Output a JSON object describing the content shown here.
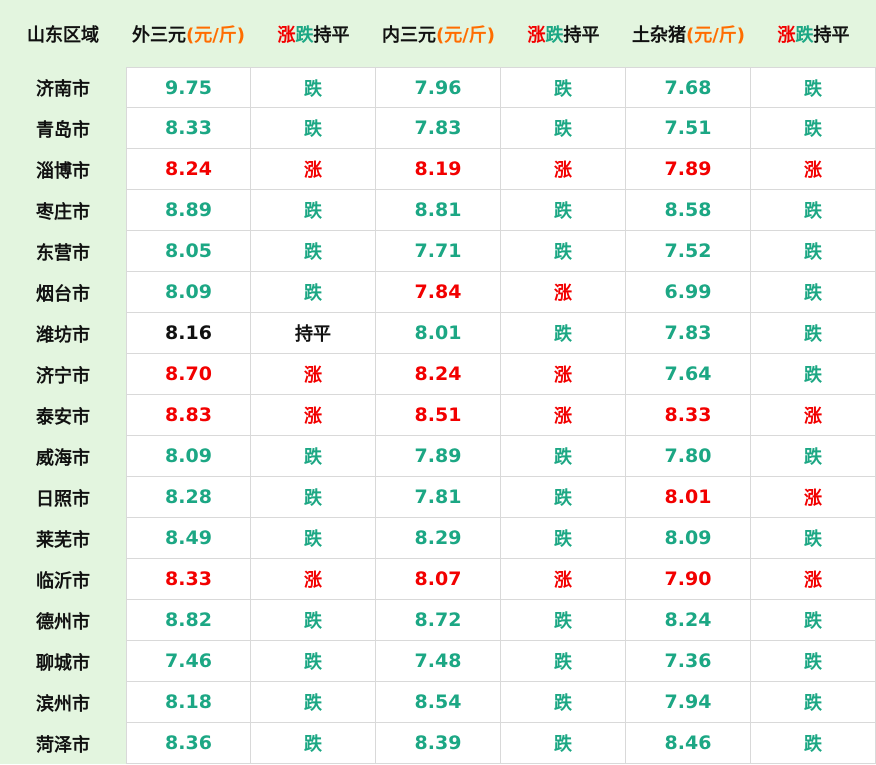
{
  "header": {
    "region": "山东区域",
    "price_cols": [
      {
        "name": "外三元",
        "unit": "(元/斤)"
      },
      {
        "name": "内三元",
        "unit": "(元/斤)"
      },
      {
        "name": "土杂猪",
        "unit": "(元/斤)"
      }
    ],
    "trend": {
      "rise": "涨",
      "fall": "跌",
      "flat": "持平"
    }
  },
  "colors": {
    "rise": "#f20000",
    "fall": "#1ca784",
    "flat": "#111111",
    "unit": "#ff6d00",
    "header_bg": "#e3f5df",
    "region_bg": "#e3f5df"
  },
  "rows": [
    {
      "city": "济南市",
      "cells": [
        {
          "price": "9.75",
          "trend": "跌"
        },
        {
          "price": "7.96",
          "trend": "跌"
        },
        {
          "price": "7.68",
          "trend": "跌"
        }
      ]
    },
    {
      "city": "青岛市",
      "cells": [
        {
          "price": "8.33",
          "trend": "跌"
        },
        {
          "price": "7.83",
          "trend": "跌"
        },
        {
          "price": "7.51",
          "trend": "跌"
        }
      ]
    },
    {
      "city": "淄博市",
      "cells": [
        {
          "price": "8.24",
          "trend": "涨"
        },
        {
          "price": "8.19",
          "trend": "涨"
        },
        {
          "price": "7.89",
          "trend": "涨"
        }
      ]
    },
    {
      "city": "枣庄市",
      "cells": [
        {
          "price": "8.89",
          "trend": "跌"
        },
        {
          "price": "8.81",
          "trend": "跌"
        },
        {
          "price": "8.58",
          "trend": "跌"
        }
      ]
    },
    {
      "city": "东营市",
      "cells": [
        {
          "price": "8.05",
          "trend": "跌"
        },
        {
          "price": "7.71",
          "trend": "跌"
        },
        {
          "price": "7.52",
          "trend": "跌"
        }
      ]
    },
    {
      "city": "烟台市",
      "cells": [
        {
          "price": "8.09",
          "trend": "跌"
        },
        {
          "price": "7.84",
          "trend": "涨"
        },
        {
          "price": "6.99",
          "trend": "跌"
        }
      ]
    },
    {
      "city": "潍坊市",
      "cells": [
        {
          "price": "8.16",
          "trend": "持平"
        },
        {
          "price": "8.01",
          "trend": "跌"
        },
        {
          "price": "7.83",
          "trend": "跌"
        }
      ]
    },
    {
      "city": "济宁市",
      "cells": [
        {
          "price": "8.70",
          "trend": "涨"
        },
        {
          "price": "8.24",
          "trend": "涨"
        },
        {
          "price": "7.64",
          "trend": "跌"
        }
      ]
    },
    {
      "city": "泰安市",
      "cells": [
        {
          "price": "8.83",
          "trend": "涨"
        },
        {
          "price": "8.51",
          "trend": "涨"
        },
        {
          "price": "8.33",
          "trend": "涨"
        }
      ]
    },
    {
      "city": "威海市",
      "cells": [
        {
          "price": "8.09",
          "trend": "跌"
        },
        {
          "price": "7.89",
          "trend": "跌"
        },
        {
          "price": "7.80",
          "trend": "跌"
        }
      ]
    },
    {
      "city": "日照市",
      "cells": [
        {
          "price": "8.28",
          "trend": "跌"
        },
        {
          "price": "7.81",
          "trend": "跌"
        },
        {
          "price": "8.01",
          "trend": "涨"
        }
      ]
    },
    {
      "city": "莱芜市",
      "cells": [
        {
          "price": "8.49",
          "trend": "跌"
        },
        {
          "price": "8.29",
          "trend": "跌"
        },
        {
          "price": "8.09",
          "trend": "跌"
        }
      ]
    },
    {
      "city": "临沂市",
      "cells": [
        {
          "price": "8.33",
          "trend": "涨"
        },
        {
          "price": "8.07",
          "trend": "涨"
        },
        {
          "price": "7.90",
          "trend": "涨"
        }
      ]
    },
    {
      "city": "德州市",
      "cells": [
        {
          "price": "8.82",
          "trend": "跌"
        },
        {
          "price": "8.72",
          "trend": "跌"
        },
        {
          "price": "8.24",
          "trend": "跌"
        }
      ]
    },
    {
      "city": "聊城市",
      "cells": [
        {
          "price": "7.46",
          "trend": "跌"
        },
        {
          "price": "7.48",
          "trend": "跌"
        },
        {
          "price": "7.36",
          "trend": "跌"
        }
      ]
    },
    {
      "city": "滨州市",
      "cells": [
        {
          "price": "8.18",
          "trend": "跌"
        },
        {
          "price": "8.54",
          "trend": "跌"
        },
        {
          "price": "7.94",
          "trend": "跌"
        }
      ]
    },
    {
      "city": "菏泽市",
      "cells": [
        {
          "price": "8.36",
          "trend": "跌"
        },
        {
          "price": "8.39",
          "trend": "跌"
        },
        {
          "price": "8.46",
          "trend": "跌"
        }
      ]
    }
  ]
}
